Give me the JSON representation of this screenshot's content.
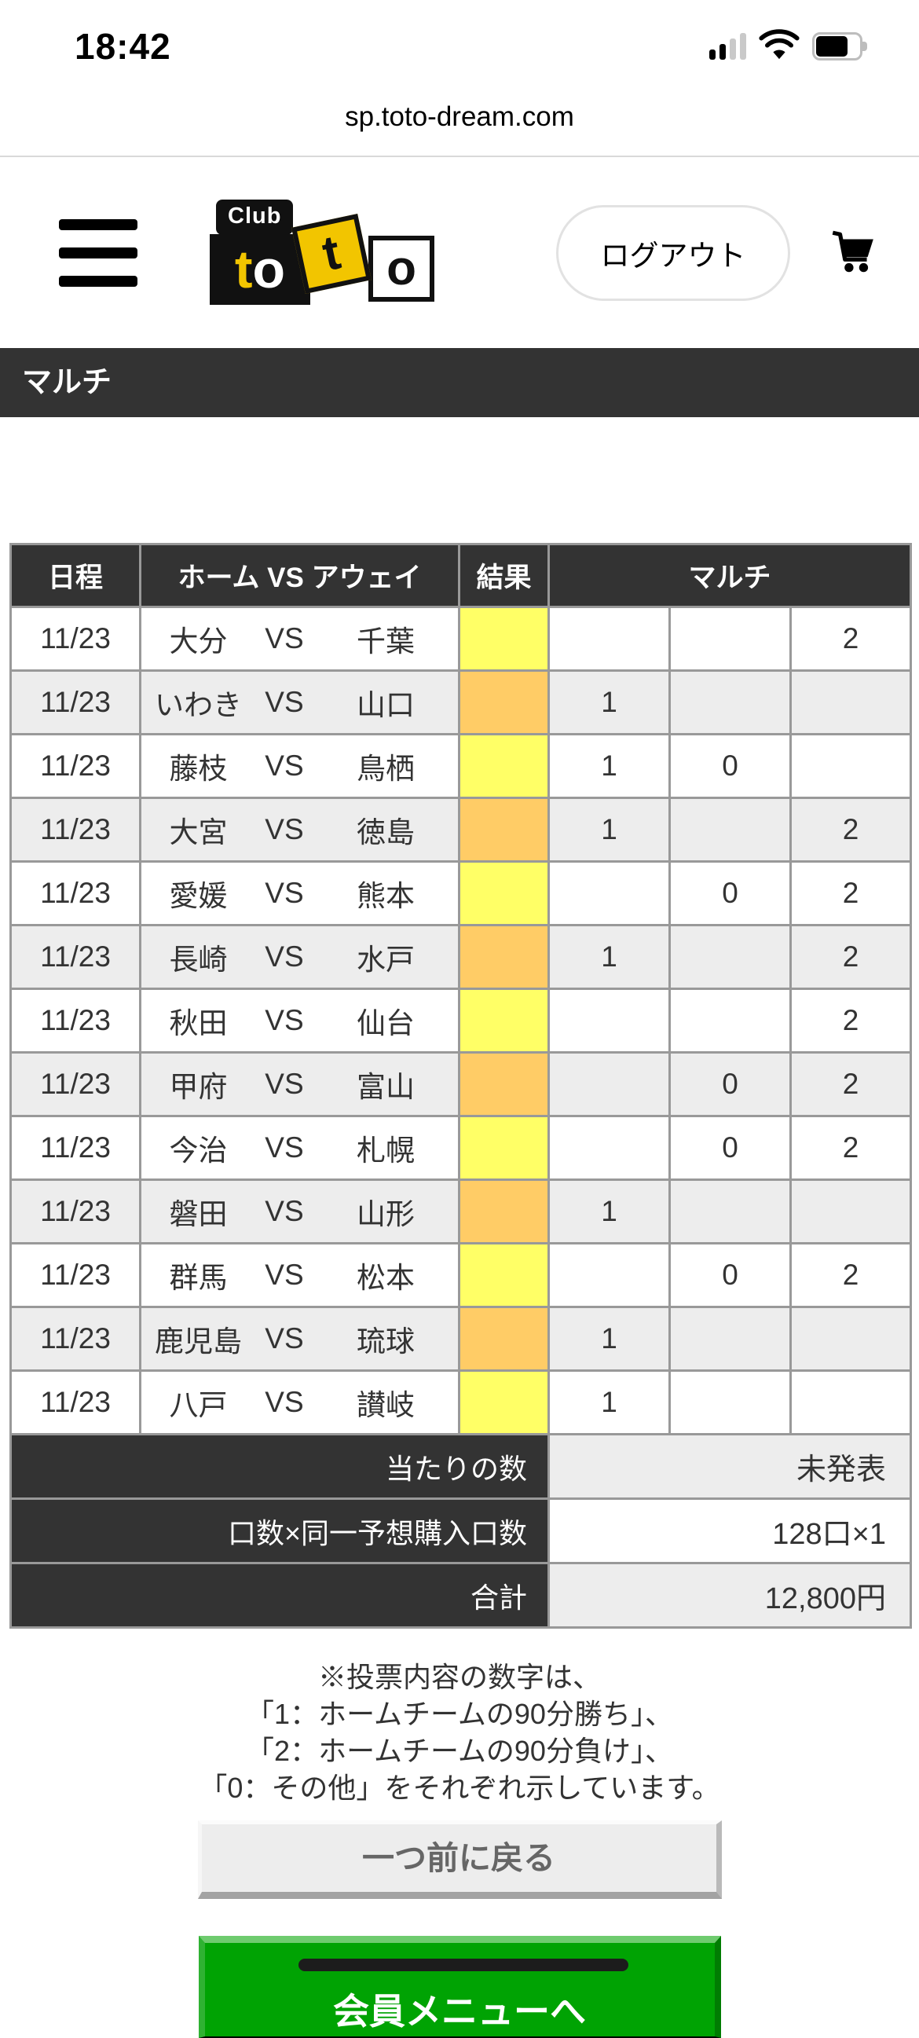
{
  "status_bar": {
    "time": "18:42"
  },
  "browser": {
    "url": "sp.toto-dream.com"
  },
  "header": {
    "logo": {
      "club": "Club",
      "t1": "t",
      "o1": "o",
      "t2": "t",
      "o2": "o"
    },
    "logout_label": "ログアウト"
  },
  "page": {
    "title": "マルチ"
  },
  "table": {
    "headers": {
      "date": "日程",
      "match": "ホーム VS アウェイ",
      "result": "結果",
      "multi": "マルチ"
    },
    "vs": "VS",
    "matches": [
      {
        "date": "11/23",
        "home": "大分",
        "away": "千葉",
        "result_color": "yellow",
        "multi": [
          "",
          "",
          "2"
        ]
      },
      {
        "date": "11/23",
        "home": "いわき",
        "away": "山口",
        "result_color": "orange",
        "multi": [
          "1",
          "",
          ""
        ]
      },
      {
        "date": "11/23",
        "home": "藤枝",
        "away": "鳥栖",
        "result_color": "yellow",
        "multi": [
          "1",
          "0",
          ""
        ]
      },
      {
        "date": "11/23",
        "home": "大宮",
        "away": "徳島",
        "result_color": "orange",
        "multi": [
          "1",
          "",
          "2"
        ]
      },
      {
        "date": "11/23",
        "home": "愛媛",
        "away": "熊本",
        "result_color": "yellow",
        "multi": [
          "",
          "0",
          "2"
        ]
      },
      {
        "date": "11/23",
        "home": "長崎",
        "away": "水戸",
        "result_color": "orange",
        "multi": [
          "1",
          "",
          "2"
        ]
      },
      {
        "date": "11/23",
        "home": "秋田",
        "away": "仙台",
        "result_color": "yellow",
        "multi": [
          "",
          "",
          "2"
        ]
      },
      {
        "date": "11/23",
        "home": "甲府",
        "away": "富山",
        "result_color": "orange",
        "multi": [
          "",
          "0",
          "2"
        ]
      },
      {
        "date": "11/23",
        "home": "今治",
        "away": "札幌",
        "result_color": "yellow",
        "multi": [
          "",
          "0",
          "2"
        ]
      },
      {
        "date": "11/23",
        "home": "磐田",
        "away": "山形",
        "result_color": "orange",
        "multi": [
          "1",
          "",
          ""
        ]
      },
      {
        "date": "11/23",
        "home": "群馬",
        "away": "松本",
        "result_color": "yellow",
        "multi": [
          "",
          "0",
          "2"
        ]
      },
      {
        "date": "11/23",
        "home": "鹿児島",
        "away": "琉球",
        "result_color": "orange",
        "multi": [
          "1",
          "",
          ""
        ]
      },
      {
        "date": "11/23",
        "home": "八戸",
        "away": "讃岐",
        "result_color": "yellow",
        "multi": [
          "1",
          "",
          ""
        ]
      }
    ],
    "summary": [
      {
        "label": "当たりの数",
        "value": "未発表"
      },
      {
        "label": "口数×同一予想購入口数",
        "value": "128口×1"
      },
      {
        "label": "合計",
        "value": "12,800円"
      }
    ]
  },
  "footnote": {
    "lines": [
      "※投票内容の数字は、",
      "「1：ホームチームの90分勝ち」、",
      "「2：ホームチームの90分負け」、",
      "「0：その他」をそれぞれ示しています。"
    ]
  },
  "buttons": {
    "back": "一つ前に戻る",
    "member_menu": "会員メニューへ"
  },
  "colors": {
    "result_yellow": "#ffff66",
    "result_orange": "#ffcc66",
    "header_dark": "#333333",
    "row_alt_gray": "#ededed",
    "accent_green": "#00a303",
    "logo_yellow": "#f2c500"
  }
}
